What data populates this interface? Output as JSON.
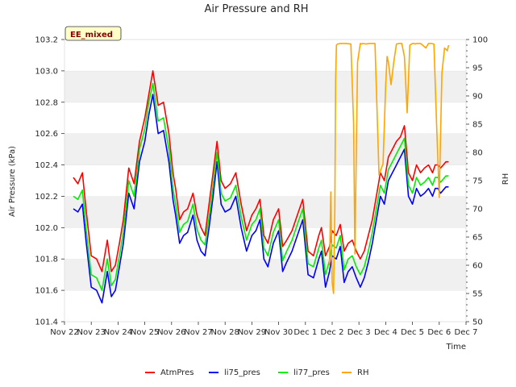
{
  "chart_data": {
    "type": "line",
    "title": "Air Pressure and RH",
    "badge": "EE_mixed",
    "xlabel": "Time",
    "ylabel": "Air Pressure (kPa)",
    "y2label": "RH",
    "xticks": [
      "Nov 22",
      "Nov 23",
      "Nov 24",
      "Nov 25",
      "Nov 26",
      "Nov 27",
      "Nov 28",
      "Nov 29",
      "Nov 30",
      "Dec 1",
      "Dec 2",
      "Dec 3",
      "Dec 4",
      "Dec 5",
      "Dec 6",
      "Dec 7"
    ],
    "xlim": [
      0,
      15
    ],
    "ylim": [
      101.4,
      103.2
    ],
    "yticks": [
      "101.4",
      "101.6",
      "101.8",
      "102.0",
      "102.2",
      "102.4",
      "102.6",
      "102.8",
      "103.0",
      "103.2"
    ],
    "y2lim": [
      50,
      100
    ],
    "y2ticks": [
      "50",
      "55",
      "60",
      "65",
      "70",
      "75",
      "80",
      "85",
      "90",
      "95",
      "100"
    ],
    "grid": "horizontal bands",
    "legend_position": "bottom",
    "colors": {
      "AtmPres": "#ff0000",
      "li75_pres": "#0000ff",
      "li77_pres": "#00ee00",
      "RH": "#ffa500"
    },
    "series": [
      {
        "name": "AtmPres",
        "axis": "left",
        "x": [
          0.33,
          0.5,
          0.67,
          0.8,
          1.0,
          1.2,
          1.4,
          1.6,
          1.75,
          1.9,
          2.05,
          2.2,
          2.4,
          2.6,
          2.8,
          3.0,
          3.15,
          3.3,
          3.5,
          3.7,
          3.9,
          4.05,
          4.15,
          4.3,
          4.45,
          4.6,
          4.8,
          4.95,
          5.1,
          5.25,
          5.4,
          5.55,
          5.7,
          5.85,
          6.0,
          6.2,
          6.4,
          6.6,
          6.8,
          7.0,
          7.15,
          7.3,
          7.45,
          7.6,
          7.8,
          8.0,
          8.15,
          8.3,
          8.5,
          8.7,
          8.9,
          9.1,
          9.3,
          9.5,
          9.6,
          9.75,
          9.9,
          10.0,
          10.15,
          10.3,
          10.45,
          10.6,
          10.75,
          10.9,
          11.05,
          11.2,
          11.35,
          11.5,
          11.65,
          11.8,
          11.95,
          12.1,
          12.25,
          12.4,
          12.55,
          12.7,
          12.85,
          13.0,
          13.15,
          13.3,
          13.45,
          13.6,
          13.75,
          13.85,
          13.95,
          14.05,
          14.15,
          14.25,
          14.35
        ],
        "values": [
          102.32,
          102.28,
          102.35,
          102.12,
          101.82,
          101.8,
          101.72,
          101.92,
          101.72,
          101.76,
          101.9,
          102.05,
          102.38,
          102.28,
          102.55,
          102.7,
          102.85,
          103.0,
          102.78,
          102.8,
          102.6,
          102.35,
          102.25,
          102.05,
          102.1,
          102.12,
          102.22,
          102.08,
          102.0,
          101.95,
          102.15,
          102.35,
          102.55,
          102.3,
          102.25,
          102.28,
          102.35,
          102.15,
          101.98,
          102.08,
          102.12,
          102.18,
          101.95,
          101.9,
          102.05,
          102.12,
          101.88,
          101.92,
          101.98,
          102.08,
          102.18,
          101.85,
          101.82,
          101.95,
          102.0,
          101.82,
          101.88,
          101.98,
          101.95,
          102.02,
          101.85,
          101.9,
          101.92,
          101.85,
          101.8,
          101.85,
          101.95,
          102.05,
          102.2,
          102.35,
          102.3,
          102.45,
          102.5,
          102.55,
          102.58,
          102.65,
          102.35,
          102.3,
          102.4,
          102.35,
          102.38,
          102.4,
          102.35,
          102.4,
          102.4,
          102.38,
          102.4,
          102.42,
          102.42
        ]
      },
      {
        "name": "li75_pres",
        "axis": "left",
        "x": [
          0.33,
          0.5,
          0.67,
          0.8,
          1.0,
          1.2,
          1.4,
          1.6,
          1.75,
          1.9,
          2.05,
          2.2,
          2.4,
          2.6,
          2.8,
          3.0,
          3.15,
          3.3,
          3.5,
          3.7,
          3.9,
          4.05,
          4.15,
          4.3,
          4.45,
          4.6,
          4.8,
          4.95,
          5.1,
          5.25,
          5.4,
          5.55,
          5.7,
          5.85,
          6.0,
          6.2,
          6.4,
          6.6,
          6.8,
          7.0,
          7.15,
          7.3,
          7.45,
          7.6,
          7.8,
          8.0,
          8.15,
          8.3,
          8.5,
          8.7,
          8.9,
          9.1,
          9.3,
          9.5,
          9.6,
          9.75,
          9.9,
          10.0,
          10.15,
          10.3,
          10.45,
          10.6,
          10.75,
          10.9,
          11.05,
          11.2,
          11.35,
          11.5,
          11.65,
          11.8,
          11.95,
          12.1,
          12.25,
          12.4,
          12.55,
          12.7,
          12.85,
          13.0,
          13.15,
          13.3,
          13.45,
          13.6,
          13.75,
          13.85,
          13.95,
          14.05,
          14.15,
          14.25,
          14.35
        ],
        "values": [
          102.12,
          102.1,
          102.15,
          101.92,
          101.62,
          101.6,
          101.52,
          101.72,
          101.56,
          101.6,
          101.75,
          101.9,
          102.22,
          102.12,
          102.42,
          102.55,
          102.72,
          102.85,
          102.6,
          102.62,
          102.42,
          102.18,
          102.08,
          101.9,
          101.95,
          101.97,
          102.08,
          101.92,
          101.85,
          101.82,
          102.0,
          102.2,
          102.42,
          102.15,
          102.1,
          102.12,
          102.2,
          102.0,
          101.85,
          101.95,
          101.98,
          102.05,
          101.8,
          101.75,
          101.9,
          101.98,
          101.72,
          101.78,
          101.85,
          101.95,
          102.05,
          101.7,
          101.68,
          101.8,
          101.85,
          101.62,
          101.72,
          101.82,
          101.8,
          101.88,
          101.65,
          101.72,
          101.75,
          101.68,
          101.62,
          101.68,
          101.78,
          101.9,
          102.05,
          102.2,
          102.15,
          102.3,
          102.35,
          102.4,
          102.45,
          102.5,
          102.2,
          102.15,
          102.25,
          102.2,
          102.22,
          102.25,
          102.2,
          102.25,
          102.25,
          102.22,
          102.24,
          102.26,
          102.26
        ]
      },
      {
        "name": "li77_pres",
        "axis": "left",
        "x": [
          0.33,
          0.5,
          0.67,
          0.8,
          1.0,
          1.2,
          1.4,
          1.6,
          1.75,
          1.9,
          2.05,
          2.2,
          2.4,
          2.6,
          2.8,
          3.0,
          3.15,
          3.3,
          3.5,
          3.7,
          3.9,
          4.05,
          4.15,
          4.3,
          4.45,
          4.6,
          4.8,
          4.95,
          5.1,
          5.25,
          5.4,
          5.55,
          5.7,
          5.85,
          6.0,
          6.2,
          6.4,
          6.6,
          6.8,
          7.0,
          7.15,
          7.3,
          7.45,
          7.6,
          7.8,
          8.0,
          8.15,
          8.3,
          8.5,
          8.7,
          8.9,
          9.1,
          9.3,
          9.5,
          9.6,
          9.75,
          9.9,
          10.0,
          10.15,
          10.3,
          10.45,
          10.6,
          10.75,
          10.9,
          11.05,
          11.2,
          11.35,
          11.5,
          11.65,
          11.8,
          11.95,
          12.1,
          12.25,
          12.4,
          12.55,
          12.7,
          12.85,
          13.0,
          13.15,
          13.3,
          13.45,
          13.6,
          13.75,
          13.85,
          13.95,
          14.05,
          14.15,
          14.25,
          14.35
        ],
        "values": [
          102.2,
          102.18,
          102.24,
          102.0,
          101.7,
          101.68,
          101.6,
          101.8,
          101.63,
          101.67,
          101.82,
          101.97,
          102.3,
          102.2,
          102.5,
          102.63,
          102.8,
          102.92,
          102.68,
          102.7,
          102.5,
          102.25,
          102.15,
          101.97,
          102.02,
          102.04,
          102.15,
          101.99,
          101.92,
          101.89,
          102.07,
          102.27,
          102.48,
          102.22,
          102.17,
          102.19,
          102.27,
          102.07,
          101.92,
          102.02,
          102.05,
          102.12,
          101.87,
          101.82,
          101.97,
          102.05,
          101.79,
          101.85,
          101.92,
          102.02,
          102.12,
          101.77,
          101.75,
          101.87,
          101.92,
          101.7,
          101.79,
          101.89,
          101.87,
          101.95,
          101.73,
          101.8,
          101.82,
          101.75,
          101.7,
          101.75,
          101.85,
          101.97,
          102.12,
          102.27,
          102.22,
          102.37,
          102.42,
          102.47,
          102.52,
          102.57,
          102.27,
          102.22,
          102.32,
          102.27,
          102.29,
          102.32,
          102.27,
          102.32,
          102.32,
          102.29,
          102.31,
          102.33,
          102.33
        ]
      },
      {
        "name": "RH",
        "axis": "right",
        "x": [
          9.9,
          9.95,
          10.0,
          10.05,
          10.1,
          10.13,
          10.16,
          10.2,
          10.3,
          10.5,
          10.7,
          10.8,
          10.85,
          10.95,
          11.05,
          11.1,
          11.15,
          11.25,
          11.4,
          11.6,
          11.75,
          11.9,
          12.0,
          12.05,
          12.1,
          12.2,
          12.3,
          12.4,
          12.5,
          12.6,
          12.7,
          12.8,
          12.9,
          13.0,
          13.05,
          13.1,
          13.15,
          13.3,
          13.5,
          13.6,
          13.7,
          13.8,
          13.9,
          14.0,
          14.1,
          14.2,
          14.3,
          14.35
        ],
        "values": [
          60,
          73,
          57,
          55,
          70,
          93,
          99,
          99.2,
          99.3,
          99.3,
          99.2,
          85,
          62,
          96,
          99.3,
          99.2,
          99.3,
          99.2,
          99.3,
          99.3,
          76,
          78,
          92,
          97,
          96,
          92,
          96,
          99.2,
          99.3,
          99.3,
          97,
          87,
          99,
          99.3,
          99.3,
          99.2,
          99.3,
          99.3,
          98.5,
          99.3,
          99.3,
          99.2,
          85,
          72,
          94,
          98.5,
          98,
          99
        ]
      }
    ]
  }
}
